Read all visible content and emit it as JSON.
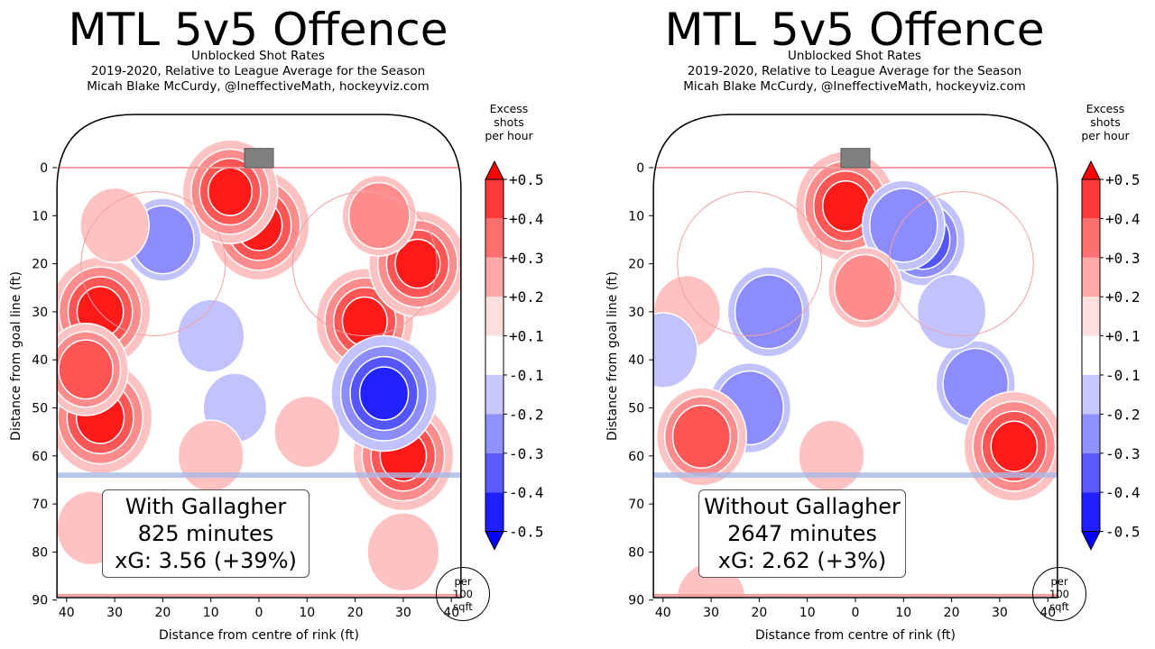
{
  "chart_data": [
    {
      "type": "heatmap",
      "title": "MTL 5v5 Offence",
      "subtitle_lines": [
        "Unblocked Shot Rates",
        "2019-2020, Relative to League Average for the Season",
        "Micah Blake McCurdy, @IneffectiveMath, hockeyviz.com"
      ],
      "xlabel": "Distance from centre of rink (ft)",
      "ylabel": "Distance from goal line (ft)",
      "xticks": [
        "40",
        "30",
        "20",
        "10",
        "0",
        "10",
        "20",
        "30",
        "40"
      ],
      "yticks": [
        "0",
        "10",
        "20",
        "30",
        "40",
        "50",
        "60",
        "70",
        "80",
        "90"
      ],
      "xlim": [
        -42,
        42
      ],
      "ylim": [
        -11,
        90
      ],
      "colorbar": {
        "title_lines": [
          "Excess",
          "shots",
          "per hour"
        ],
        "labels": [
          "+0.5",
          "+0.4",
          "+0.3",
          "+0.2",
          "+0.1",
          "-0.1",
          "-0.2",
          "-0.3",
          "-0.4",
          "-0.5"
        ]
      },
      "units_badge": [
        "per",
        "100",
        "sqft"
      ],
      "box": {
        "line1": "With Gallagher",
        "line2": "825 minutes",
        "line3": "xG: 3.56 (+39%)"
      },
      "blobs": [
        {
          "x": 0,
          "y": 12,
          "v": 0.45
        },
        {
          "x": -6,
          "y": 5,
          "v": 0.4
        },
        {
          "x": -33,
          "y": 30,
          "v": 0.45
        },
        {
          "x": -33,
          "y": 52,
          "v": 0.48
        },
        {
          "x": -36,
          "y": 42,
          "v": 0.3
        },
        {
          "x": 22,
          "y": 32,
          "v": 0.42
        },
        {
          "x": 33,
          "y": 20,
          "v": 0.42
        },
        {
          "x": 30,
          "y": 60,
          "v": 0.45
        },
        {
          "x": 26,
          "y": 47,
          "v": -0.5
        },
        {
          "x": -20,
          "y": 15,
          "v": -0.22
        },
        {
          "x": -10,
          "y": 35,
          "v": -0.13
        },
        {
          "x": -5,
          "y": 50,
          "v": -0.1
        },
        {
          "x": -10,
          "y": 60,
          "v": 0.12
        },
        {
          "x": 10,
          "y": 55,
          "v": 0.12
        },
        {
          "x": 30,
          "y": 80,
          "v": 0.18
        },
        {
          "x": -35,
          "y": 75,
          "v": 0.14
        },
        {
          "x": 25,
          "y": 10,
          "v": 0.2
        },
        {
          "x": -30,
          "y": 12,
          "v": 0.15
        }
      ]
    },
    {
      "type": "heatmap",
      "title": "MTL 5v5 Offence",
      "subtitle_lines": [
        "Unblocked Shot Rates",
        "2019-2020, Relative to League Average for the Season",
        "Micah Blake McCurdy, @IneffectiveMath, hockeyviz.com"
      ],
      "xlabel": "Distance from centre of rink (ft)",
      "ylabel": "Distance from goal line (ft)",
      "xticks": [
        "40",
        "30",
        "20",
        "10",
        "0",
        "10",
        "20",
        "30",
        "40"
      ],
      "yticks": [
        "0",
        "10",
        "20",
        "30",
        "40",
        "50",
        "60",
        "70",
        "80",
        "90"
      ],
      "xlim": [
        -42,
        42
      ],
      "ylim": [
        -11,
        90
      ],
      "colorbar": {
        "title_lines": [
          "Excess",
          "shots",
          "per hour"
        ],
        "labels": [
          "+0.5",
          "+0.4",
          "+0.3",
          "+0.2",
          "+0.1",
          "-0.1",
          "-0.2",
          "-0.3",
          "-0.4",
          "-0.5"
        ]
      },
      "units_badge": [
        "per",
        "100",
        "sqft"
      ],
      "box": {
        "line1": "Without Gallagher",
        "line2": "2647 minutes",
        "line3": "xG: 2.62 (+3%)"
      },
      "blobs": [
        {
          "x": -2,
          "y": 8,
          "v": 0.45
        },
        {
          "x": 14,
          "y": 15,
          "v": -0.3
        },
        {
          "x": 10,
          "y": 12,
          "v": -0.28
        },
        {
          "x": -18,
          "y": 30,
          "v": -0.28
        },
        {
          "x": -22,
          "y": 50,
          "v": -0.28
        },
        {
          "x": 25,
          "y": 45,
          "v": -0.25
        },
        {
          "x": 33,
          "y": 58,
          "v": 0.45
        },
        {
          "x": -32,
          "y": 56,
          "v": 0.35
        },
        {
          "x": -35,
          "y": 30,
          "v": 0.13
        },
        {
          "x": 2,
          "y": 25,
          "v": 0.2
        },
        {
          "x": -30,
          "y": 90,
          "v": 0.15
        },
        {
          "x": 20,
          "y": 30,
          "v": -0.15
        },
        {
          "x": -40,
          "y": 38,
          "v": -0.15
        },
        {
          "x": -5,
          "y": 60,
          "v": 0.12
        }
      ]
    }
  ]
}
